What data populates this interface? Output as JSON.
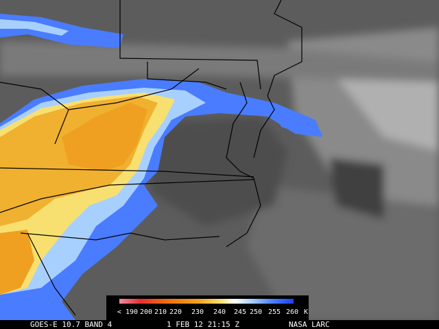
{
  "legend": {
    "labels": [
      "< 190",
      "200",
      "210",
      "220",
      "230",
      "240",
      "245",
      "250",
      "255",
      "260"
    ],
    "unit": "K"
  },
  "caption": {
    "source": "GOES-E 10.7 BAND 4",
    "time": "1 FEB 12 21:15 Z",
    "credit": "NASA LARC"
  }
}
